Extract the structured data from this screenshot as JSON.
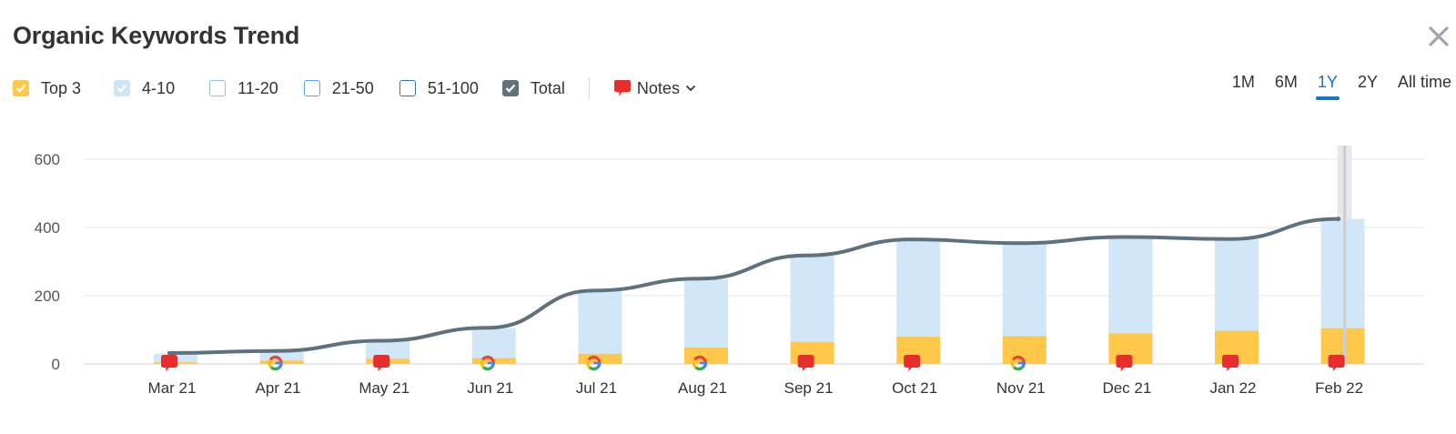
{
  "title": "Organic Keywords Trend",
  "legend": {
    "items": [
      {
        "label": "Top 3",
        "style": "filled",
        "color": "#ffc84a",
        "checked": true
      },
      {
        "label": "4-10",
        "style": "filled",
        "color": "#cfe5f6",
        "checked": true
      },
      {
        "label": "11-20",
        "style": "outline",
        "color": "#8ec1ea",
        "checked": false
      },
      {
        "label": "21-50",
        "style": "outline",
        "color": "#5ea7e0",
        "checked": false
      },
      {
        "label": "51-100",
        "style": "outline",
        "color": "#2a78c0",
        "checked": false
      },
      {
        "label": "Total",
        "style": "filled",
        "color": "#5f717d",
        "checked": true
      }
    ],
    "notes_label": "Notes"
  },
  "periods": {
    "items": [
      "1M",
      "6M",
      "1Y",
      "2Y",
      "All time"
    ],
    "active": "1Y"
  },
  "colors": {
    "top3": "#ffc84a",
    "range4_10": "#d1e7f7",
    "total_line": "#5f717d",
    "note": "#e62e2e",
    "active_period": "#1a73c7"
  },
  "chart_data": {
    "type": "bar",
    "title": "Organic Keywords Trend",
    "categories": [
      "Mar 21",
      "Apr 21",
      "May 21",
      "Jun 21",
      "Jul 21",
      "Aug 21",
      "Sep 21",
      "Oct 21",
      "Nov 21",
      "Dec 21",
      "Jan 22",
      "Feb 22"
    ],
    "series": [
      {
        "name": "Top 3",
        "type": "bar",
        "stack": "keywords",
        "values": [
          5,
          10,
          15,
          18,
          30,
          48,
          65,
          80,
          82,
          90,
          98,
          105
        ]
      },
      {
        "name": "4-10",
        "type": "bar",
        "stack": "keywords",
        "values": [
          25,
          28,
          55,
          87,
          188,
          200,
          252,
          285,
          270,
          280,
          268,
          320
        ]
      },
      {
        "name": "Total",
        "type": "line",
        "values": [
          32,
          38,
          68,
          106,
          215,
          250,
          318,
          365,
          354,
          372,
          366,
          425
        ]
      }
    ],
    "yaxis": {
      "ticks": [
        0,
        200,
        400,
        600
      ],
      "ylim": [
        0,
        600
      ]
    },
    "markers": [
      "note",
      "google",
      "note",
      "google",
      "google",
      "google",
      "note",
      "note",
      "google",
      "note",
      "note",
      "note"
    ],
    "highlighted": "Feb 22",
    "xlabel": "",
    "ylabel": "",
    "grid": true
  }
}
